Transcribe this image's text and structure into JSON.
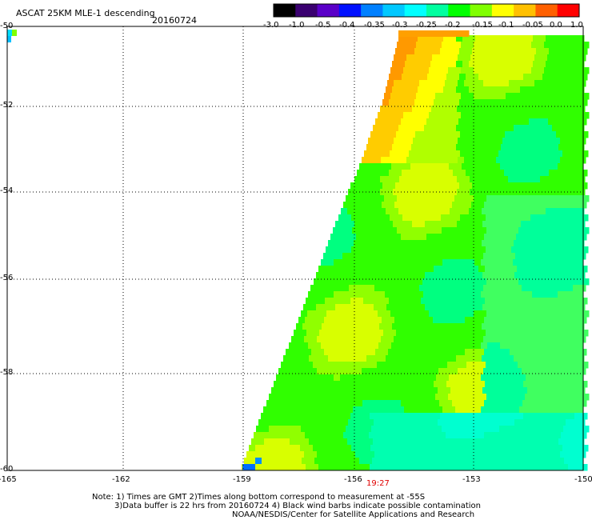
{
  "header": {
    "title": "ASCAT 25KM MLE-1 descending",
    "date": "20160724"
  },
  "colorbar": {
    "labels": [
      "-3.0",
      "-1.0",
      "-0.5",
      "-0.4",
      "-0.35",
      "-0.3",
      "-0.25",
      "-0.2",
      "-0.15",
      "-0.1",
      "-0.05",
      "0.0",
      "1.0"
    ],
    "colors": [
      "#000000",
      "#3a0070",
      "#5a00c8",
      "#0010ff",
      "#0080ff",
      "#00c8ff",
      "#00ffff",
      "#00ffa0",
      "#00ff00",
      "#80ff00",
      "#ffff00",
      "#ffc000",
      "#ff6000",
      "#ff0000"
    ]
  },
  "map": {
    "lat_labels": [
      "-50",
      "-52",
      "-54",
      "-56",
      "-58",
      "-60"
    ],
    "lon_labels": [
      "-165",
      "-162",
      "-159",
      "-156",
      "-153",
      "-150"
    ],
    "time_label": "19:27",
    "time_color": "#e00000"
  },
  "notes": {
    "line1": "Note: 1) Times are GMT 2)Times along bottom correspond to measurement at -55S",
    "line2": "3)Data buffer is 22 hrs from 20160724 4) Black wind barbs indicate possible contamination",
    "line3": "NOAA/NESDIS/Center for Satellite Applications and Research"
  }
}
